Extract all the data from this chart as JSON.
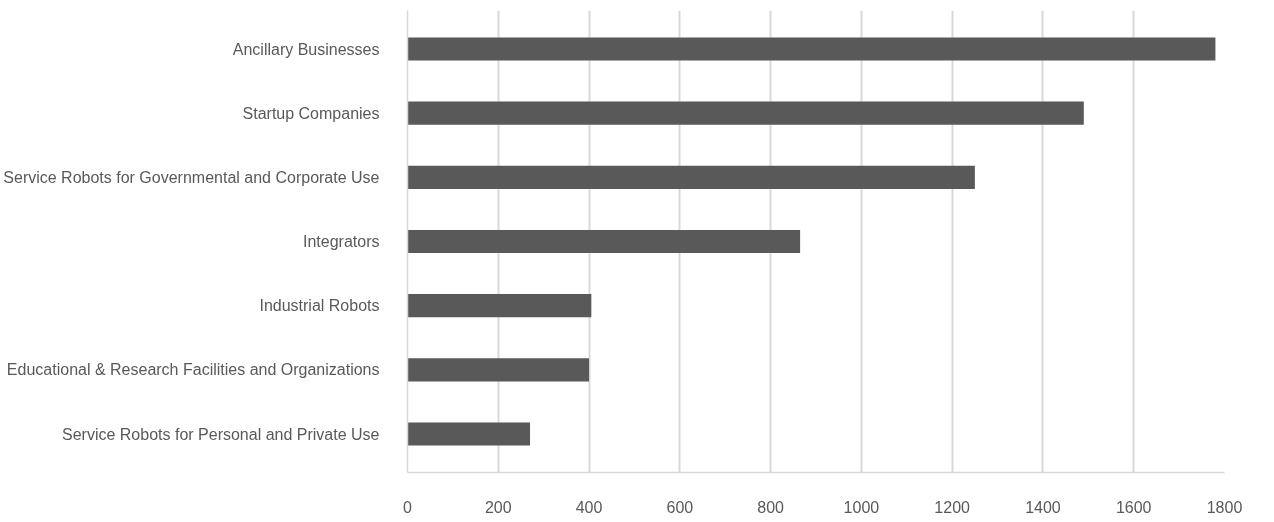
{
  "chart_data": {
    "type": "bar",
    "orientation": "horizontal",
    "categories": [
      "Ancillary Businesses",
      "Startup Companies",
      "Service Robots for Governmental and Corporate Use",
      "Integrators",
      "Industrial Robots",
      "Educational & Research Facilities and Organizations",
      "Service Robots for Personal and Private Use"
    ],
    "values": [
      1780,
      1490,
      1250,
      865,
      405,
      400,
      270
    ],
    "color": "#595959",
    "xlim": [
      0,
      1800
    ],
    "xticks": [
      0,
      200,
      400,
      600,
      800,
      1000,
      1200,
      1400,
      1600,
      1800
    ],
    "grid": "x"
  }
}
